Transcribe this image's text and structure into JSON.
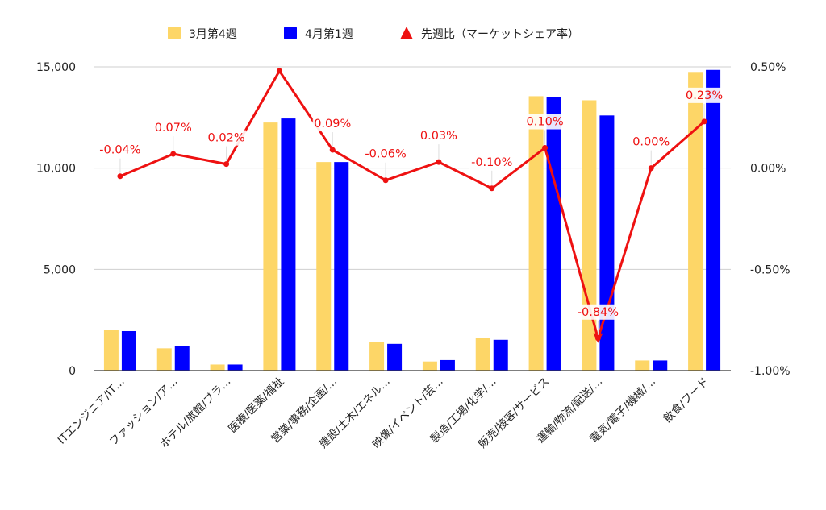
{
  "chart_data": {
    "type": "bar",
    "categories": [
      "ITエンジニア/IT…",
      "ファッション/ア…",
      "ホテル/旅館/ブラ…",
      "医療/医薬/福祉",
      "営業/事務/企画/…",
      "建設/土木/エネル…",
      "映像/イベント/芸…",
      "製造/工場/化学/…",
      "販売/接客/サービス",
      "運輸/物流/配送/…",
      "電気/電子/機械/…",
      "飲食/フード"
    ],
    "series": [
      {
        "name": "3月第4週",
        "type": "bar",
        "axis": "left",
        "color": "#fdd667",
        "values": [
          2000,
          1100,
          300,
          12250,
          10300,
          1400,
          450,
          1600,
          13550,
          13350,
          500,
          14750
        ]
      },
      {
        "name": "4月第1週",
        "type": "bar",
        "axis": "left",
        "color": "#0000ff",
        "values": [
          1950,
          1200,
          300,
          12450,
          10300,
          1320,
          520,
          1520,
          13500,
          12600,
          500,
          14850
        ]
      },
      {
        "name": "先週比（マーケットシェア率）",
        "type": "line",
        "axis": "right",
        "color": "#ee1111",
        "values": [
          -0.04,
          0.07,
          0.02,
          0.48,
          0.09,
          -0.06,
          0.03,
          -0.1,
          0.1,
          -0.84,
          0.0,
          0.23
        ],
        "labels": [
          "-0.04%",
          "0.07%",
          "0.02%",
          "",
          "0.09%",
          "-0.06%",
          "0.03%",
          "-0.10%",
          "0.10%",
          "-0.84%",
          "0.00%",
          "0.23%"
        ]
      }
    ],
    "y_left": {
      "ylim": [
        0,
        15000
      ],
      "ticks": [
        0,
        5000,
        10000,
        15000
      ],
      "tick_labels": [
        "0",
        "5,000",
        "10,000",
        "15,000"
      ]
    },
    "y_right": {
      "ylim": [
        -1.0,
        0.5
      ],
      "ticks": [
        -1.0,
        -0.5,
        0.0,
        0.5
      ],
      "tick_labels": [
        "-1.00%",
        "-0.50%",
        "0.00%",
        "0.50%"
      ]
    },
    "grid": true,
    "legend": "top-center",
    "title": "",
    "xlabel": "",
    "ylabel": ""
  }
}
